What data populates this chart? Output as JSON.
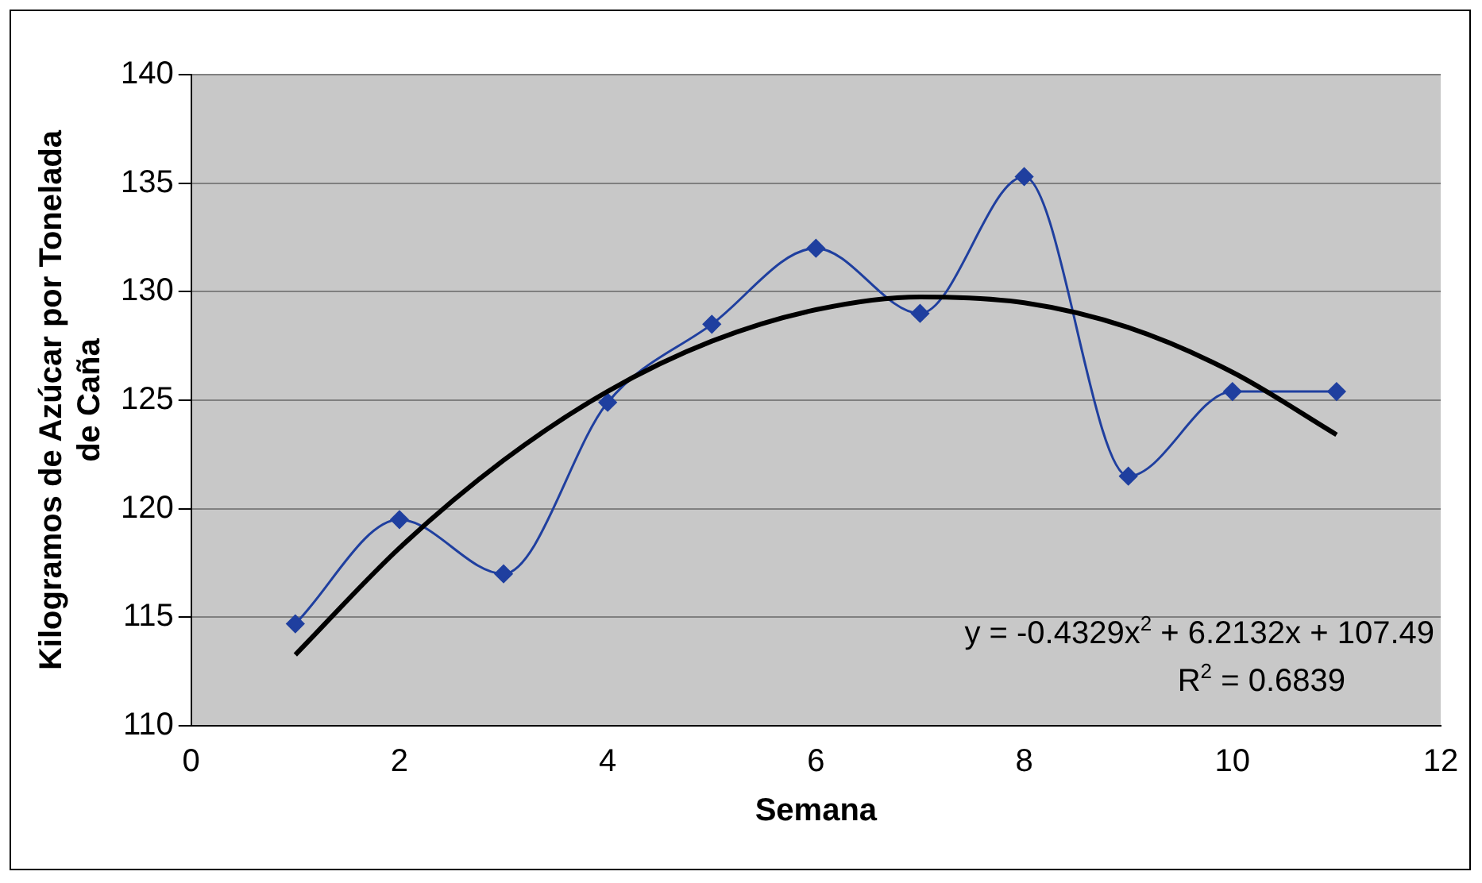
{
  "chart_data": {
    "type": "line",
    "xlabel": "Semana",
    "ylabel": "Kilogramos de Azúcar por Tonelada de Caña",
    "x": [
      1,
      2,
      3,
      4,
      5,
      6,
      7,
      8,
      9,
      10,
      11
    ],
    "series": [
      {
        "color": "#1f3f9f",
        "values": [
          114.7,
          119.5,
          117,
          124.9,
          128.5,
          132,
          129,
          135.3,
          121.5,
          125.4,
          125.4
        ],
        "marker": "diamond"
      },
      {
        "type": "line",
        "color": "#000000",
        "x": [
          1,
          2,
          3,
          4,
          5,
          6,
          7,
          8,
          9,
          10,
          11
        ],
        "values": [
          113.27,
          118.19,
          122.23,
          125.41,
          127.72,
          129.17,
          129.76,
          129.49,
          128.35,
          126.29,
          123.41
        ],
        "marker": "none"
      }
    ],
    "xlim": [
      0,
      12
    ],
    "xticks": [
      0,
      2,
      4,
      6,
      8,
      10,
      12
    ],
    "ylim": [
      110,
      140
    ],
    "yticks": [
      110,
      115,
      120,
      125,
      130,
      135,
      140
    ],
    "grid": "y",
    "legend": false,
    "annotations": [
      "y = -0.4329x$^{2}$ + 6.2132x + 107.49",
      "R$^{2}$ = 0.6839"
    ]
  }
}
